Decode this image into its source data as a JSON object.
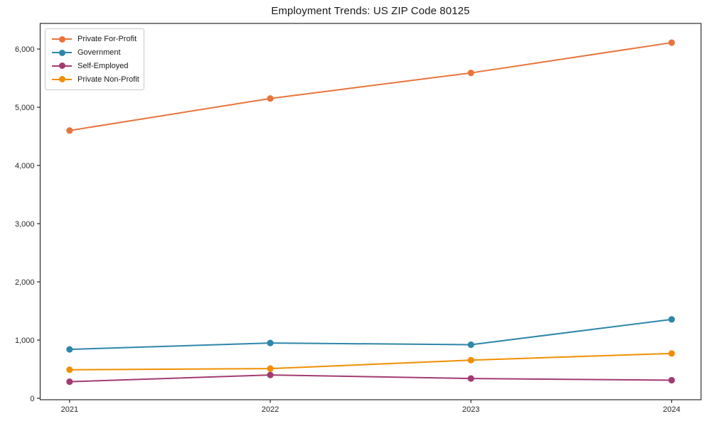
{
  "figure": {
    "background_color": "#ffffff"
  },
  "chart_data": {
    "type": "line",
    "title": "Employment Trends: US ZIP Code 80125",
    "xlabel": "",
    "ylabel": "",
    "grid": false,
    "legend_position": "upper-left",
    "axis_color": "#2b2b2b",
    "tick_label_color": "#262626",
    "categories": [
      "2021",
      "2022",
      "2023",
      "2024"
    ],
    "series": [
      {
        "name": "Private For-Profit",
        "color": "#E8743B",
        "values": [
          4600,
          5150,
          5590,
          6110
        ]
      },
      {
        "name": "Government",
        "color": "#2E86AB",
        "values": [
          840,
          950,
          920,
          1355
        ]
      },
      {
        "name": "Self-Employed",
        "color": "#A23B72",
        "values": [
          285,
          400,
          340,
          310
        ]
      },
      {
        "name": "Private Non-Profit",
        "color": "#F18F01",
        "values": [
          490,
          510,
          655,
          770
        ]
      }
    ],
    "yticks": [
      0,
      1000,
      2000,
      3000,
      4000,
      5000,
      6000
    ],
    "ytick_labels": [
      "0",
      "1,000",
      "2,000",
      "3,000",
      "4,000",
      "5,000",
      "6,000"
    ],
    "ylim": [
      -25,
      6440
    ]
  }
}
